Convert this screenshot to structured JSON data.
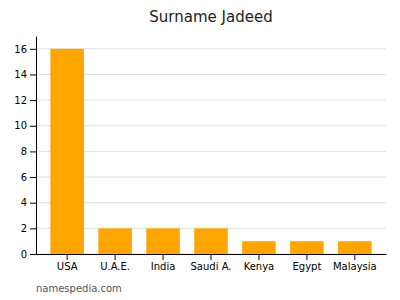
{
  "chart_data": {
    "type": "bar",
    "title": "Surname Jadeed",
    "categories": [
      "USA",
      "U.A.E.",
      "India",
      "Saudi A.",
      "Kenya",
      "Egypt",
      "Malaysia"
    ],
    "values": [
      16,
      2,
      2,
      2,
      1,
      1,
      1
    ],
    "color": "#FFA500",
    "ylim": [
      0,
      17
    ],
    "yticks": [
      0,
      2,
      4,
      6,
      8,
      10,
      12,
      14,
      16
    ],
    "grid": true,
    "annotations": [
      "namespedia.com"
    ]
  }
}
